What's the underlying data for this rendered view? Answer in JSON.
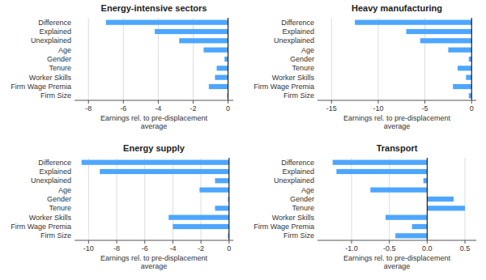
{
  "chart_data": [
    {
      "type": "bar",
      "orientation": "horizontal",
      "title": "Energy-intensive sectors",
      "categories": [
        "Difference",
        "Explained",
        "Unexplained",
        "Age",
        "Gender",
        "Tenure",
        "Worker Skills",
        "Firm Wage Premia",
        "Firm Size"
      ],
      "values": [
        -7.0,
        -4.2,
        -2.8,
        -1.4,
        -0.2,
        -0.65,
        -0.75,
        -1.1,
        -0.05
      ],
      "color": "#4da6ff",
      "xlim": [
        -8.8,
        0.3
      ],
      "xticks": [
        -8,
        -6,
        -4,
        -2,
        0
      ],
      "x_label": "Earnings rel. to pre-displacement\naverage",
      "grid": true
    },
    {
      "type": "bar",
      "orientation": "horizontal",
      "title": "Heavy manufacturing",
      "categories": [
        "Difference",
        "Explained",
        "Unexplained",
        "Age",
        "Gender",
        "Tenure",
        "Worker Skills",
        "Firm Wage Premia",
        "Firm Size"
      ],
      "values": [
        -12.5,
        -7.0,
        -5.5,
        -2.5,
        -0.3,
        -1.5,
        -0.6,
        -2.0,
        -0.3
      ],
      "color": "#4da6ff",
      "xlim": [
        -16.5,
        0.5
      ],
      "xticks": [
        -15,
        -10,
        -5,
        0
      ],
      "x_label": "Earnings rel. to pre-displacement\naverage",
      "grid": true
    },
    {
      "type": "bar",
      "orientation": "horizontal",
      "title": "Energy supply",
      "categories": [
        "Difference",
        "Explained",
        "Unexplained",
        "Age",
        "Gender",
        "Tenure",
        "Worker Skills",
        "Firm Wage Premia",
        "Firm Size"
      ],
      "values": [
        -10.5,
        -9.2,
        -1.0,
        -2.1,
        -0.08,
        -1.0,
        -4.3,
        -4.0,
        -0.08
      ],
      "color": "#4da6ff",
      "xlim": [
        -11.0,
        0.3
      ],
      "xticks": [
        -10,
        -8,
        -6,
        -4,
        -2,
        0
      ],
      "x_label": "Earnings rel. to pre-displacement\naverage",
      "grid": true
    },
    {
      "type": "bar",
      "orientation": "horizontal",
      "title": "Transport",
      "categories": [
        "Difference",
        "Explained",
        "Unexplained",
        "Age",
        "Gender",
        "Tenure",
        "Worker Skills",
        "Firm Wage Premia",
        "Firm Size"
      ],
      "values": [
        -1.25,
        -1.2,
        -0.05,
        -0.75,
        0.35,
        0.5,
        -0.55,
        -0.2,
        -0.42
      ],
      "color": "#4da6ff",
      "xlim": [
        -1.45,
        0.65
      ],
      "xticks": [
        {
          "value": -1,
          "label": "-1.0"
        },
        -0.5,
        {
          "value": 0,
          "label": "0.0"
        },
        0.5
      ],
      "x_label": "Earnings rel. to pre-displacement\naverage",
      "grid": true
    }
  ]
}
